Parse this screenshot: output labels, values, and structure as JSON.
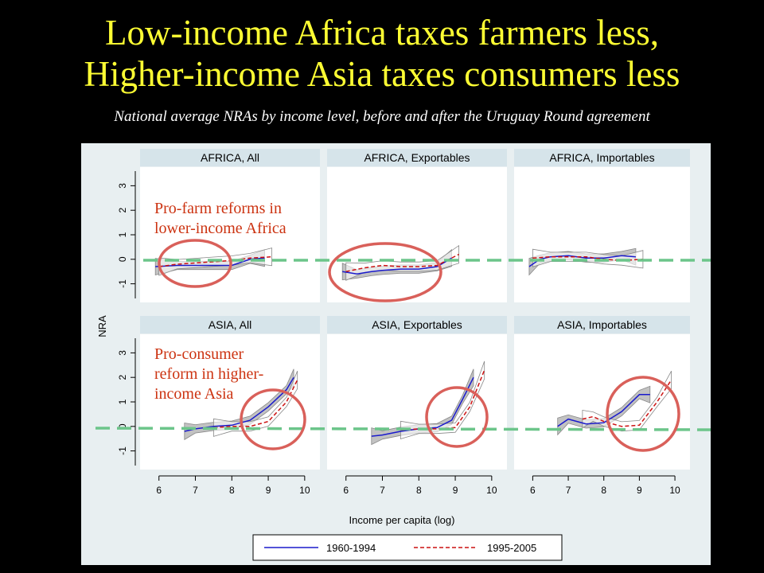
{
  "title_line1": "Low-income Africa taxes farmers less,",
  "title_line2": "Higher-income Asia taxes consumers less",
  "subtitle": "National average NRAs by income level, before and after the Uruguay Round agreement",
  "annotations": {
    "africa": [
      "Pro-farm reforms in",
      "lower-income Africa"
    ],
    "asia": [
      "Pro-consumer",
      "reform in higher-",
      "income Asia"
    ]
  },
  "colors": {
    "title": "#ffff33",
    "annotation": "#cc3311",
    "circle": "#d9605a",
    "zero_line": "#6cc58a",
    "series1": "#1a1acc",
    "series2": "#cc1111",
    "panel_bg": "#e8eff1",
    "header_bg": "#d6e4ea",
    "band": "#b3b3b3"
  },
  "chart_data": {
    "type": "line",
    "xlabel": "Income per capita (log)",
    "ylabel": "NRA",
    "xlim": [
      5.7,
      10.2
    ],
    "ylim": [
      -1.5,
      3.5
    ],
    "xticks": [
      6,
      7,
      8,
      9,
      10
    ],
    "yticks": [
      -1,
      0,
      1,
      2,
      3
    ],
    "legend": [
      "1960-1994",
      "1995-2005"
    ],
    "panels": [
      {
        "title": "AFRICA, All",
        "series": [
          {
            "name": "1960-1994",
            "x": [
              5.9,
              6.5,
              7,
              7.5,
              8,
              8.5,
              8.9
            ],
            "y": [
              -0.3,
              -0.25,
              -0.25,
              -0.25,
              -0.25,
              0,
              0.05
            ]
          },
          {
            "name": "1995-2005",
            "x": [
              6,
              6.5,
              7,
              7.5,
              8,
              8.5,
              9.1
            ],
            "y": [
              -0.3,
              -0.2,
              -0.15,
              -0.1,
              -0.05,
              0.05,
              0.1
            ]
          }
        ]
      },
      {
        "title": "AFRICA, Exportables",
        "series": [
          {
            "name": "1960-1994",
            "x": [
              5.9,
              6.3,
              6.7,
              7,
              7.5,
              8,
              8.5,
              8.9
            ],
            "y": [
              -0.5,
              -0.6,
              -0.5,
              -0.45,
              -0.4,
              -0.4,
              -0.3,
              0.05
            ]
          },
          {
            "name": "1995-2005",
            "x": [
              6,
              6.5,
              7,
              7.5,
              8,
              8.5,
              9.1
            ],
            "y": [
              -0.5,
              -0.35,
              -0.25,
              -0.3,
              -0.3,
              -0.25,
              0.2
            ]
          }
        ]
      },
      {
        "title": "AFRICA, Importables",
        "series": [
          {
            "name": "1960-1994",
            "x": [
              5.9,
              6.2,
              6.5,
              7,
              7.5,
              8,
              8.5,
              8.9
            ],
            "y": [
              -0.3,
              0,
              0.1,
              0.15,
              0.05,
              0.05,
              0.15,
              0.1
            ]
          },
          {
            "name": "1995-2005",
            "x": [
              6,
              6.5,
              7,
              7.5,
              8,
              8.5,
              9.1
            ],
            "y": [
              0.05,
              0.1,
              0.1,
              0.1,
              0,
              -0.05,
              0
            ]
          }
        ]
      },
      {
        "title": "ASIA, All",
        "series": [
          {
            "name": "1960-1994",
            "x": [
              6.7,
              7,
              7.5,
              8,
              8.5,
              9,
              9.5,
              9.7
            ],
            "y": [
              -0.2,
              -0.1,
              0,
              0.05,
              0.25,
              0.8,
              1.5,
              2
            ]
          },
          {
            "name": "1995-2005",
            "x": [
              7.5,
              8,
              8.5,
              9,
              9.5,
              9.8
            ],
            "y": [
              -0.05,
              0,
              0,
              0.2,
              1,
              1.9
            ]
          }
        ]
      },
      {
        "title": "ASIA, Exportables",
        "series": [
          {
            "name": "1960-1994",
            "x": [
              6.7,
              7,
              7.5,
              8,
              8.5,
              8.9,
              9.2,
              9.5
            ],
            "y": [
              -0.4,
              -0.35,
              -0.2,
              -0.1,
              -0.05,
              0.25,
              1.1,
              2
            ]
          },
          {
            "name": "1995-2005",
            "x": [
              7.5,
              8,
              8.5,
              9,
              9.4,
              9.8
            ],
            "y": [
              -0.15,
              -0.1,
              -0.1,
              -0.05,
              0.8,
              2.3
            ]
          }
        ]
      },
      {
        "title": "ASIA, Importables",
        "series": [
          {
            "name": "1960-1994",
            "x": [
              6.7,
              7,
              7.5,
              8,
              8.5,
              9,
              9.3
            ],
            "y": [
              0,
              0.3,
              0.1,
              0.15,
              0.6,
              1.3,
              1.3
            ]
          },
          {
            "name": "1995-2005",
            "x": [
              7.4,
              7.7,
              8,
              8.5,
              9,
              9.5,
              9.9
            ],
            "y": [
              0.3,
              0.4,
              0.2,
              0,
              0.05,
              1,
              1.9
            ]
          }
        ]
      }
    ]
  }
}
